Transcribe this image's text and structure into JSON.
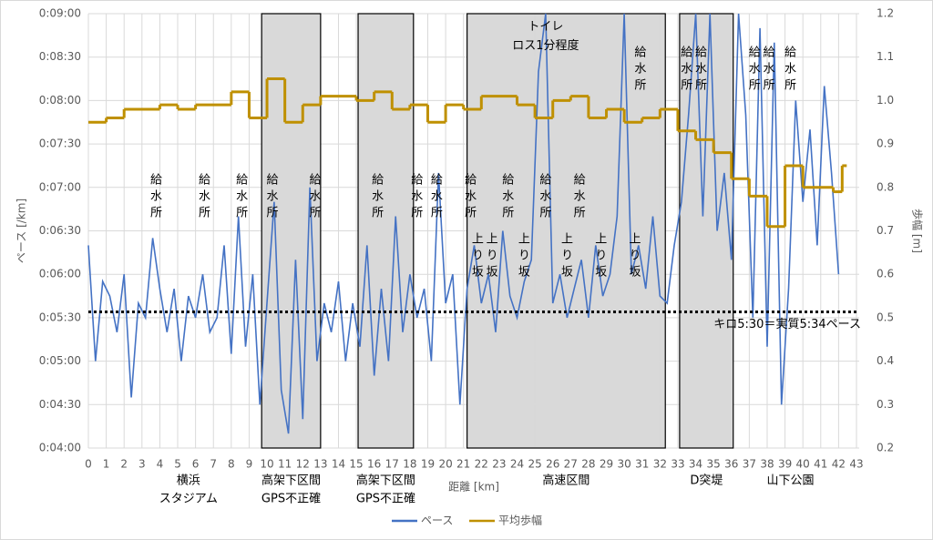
{
  "chart_data": {
    "type": "line",
    "xlabel": "距離 [km]",
    "ylabel": "ペース [/km]",
    "y2label": "歩幅 [m]",
    "xlim": [
      0,
      43
    ],
    "xticks": [
      0,
      1,
      2,
      3,
      4,
      5,
      6,
      7,
      8,
      9,
      10,
      11,
      12,
      13,
      14,
      15,
      16,
      17,
      18,
      19,
      20,
      21,
      22,
      23,
      24,
      25,
      26,
      27,
      28,
      29,
      30,
      31,
      32,
      33,
      34,
      35,
      36,
      37,
      38,
      39,
      40,
      41,
      42,
      43
    ],
    "ylim": [
      240,
      540
    ],
    "yticks": [
      {
        "value": 240,
        "label": "0:04:00"
      },
      {
        "value": 270,
        "label": "0:04:30"
      },
      {
        "value": 300,
        "label": "0:05:00"
      },
      {
        "value": 330,
        "label": "0:05:30"
      },
      {
        "value": 360,
        "label": "0:06:00"
      },
      {
        "value": 390,
        "label": "0:06:30"
      },
      {
        "value": 420,
        "label": "0:07:00"
      },
      {
        "value": 450,
        "label": "0:07:30"
      },
      {
        "value": 480,
        "label": "0:08:00"
      },
      {
        "value": 510,
        "label": "0:08:30"
      },
      {
        "value": 540,
        "label": "0:09:00"
      }
    ],
    "y2lim": [
      0.2,
      1.2
    ],
    "y2ticks": [
      0.2,
      0.3,
      0.4,
      0.5,
      0.6,
      0.7,
      0.8,
      0.9,
      {
        "value": 1,
        "label": "1.0"
      },
      1.1,
      1.2
    ],
    "grid": true,
    "legend": "bottom",
    "series": [
      {
        "name": "ペース",
        "color": "#4472c4",
        "x": [
          0,
          0.4,
          0.8,
          1.2,
          1.6,
          2,
          2.4,
          2.8,
          3.2,
          3.6,
          4,
          4.4,
          4.8,
          5.2,
          5.6,
          6,
          6.4,
          6.8,
          7.2,
          7.6,
          8,
          8.4,
          8.8,
          9.2,
          9.6,
          10,
          10.4,
          10.8,
          11.2,
          11.6,
          12,
          12.4,
          12.8,
          13.2,
          13.6,
          14,
          14.4,
          14.8,
          15.2,
          15.6,
          16,
          16.4,
          16.8,
          17.2,
          17.6,
          18,
          18.4,
          18.8,
          19.2,
          19.6,
          20,
          20.4,
          20.8,
          21.2,
          21.6,
          22,
          22.4,
          22.8,
          23.2,
          23.6,
          24,
          24.4,
          24.8,
          25.2,
          25.6,
          26,
          26.4,
          26.8,
          27.2,
          27.6,
          28,
          28.4,
          28.8,
          29.2,
          29.6,
          30,
          30.4,
          30.8,
          31.2,
          31.6,
          32,
          32.4,
          32.8,
          33.2,
          33.6,
          34,
          34.4,
          34.8,
          35.2,
          35.6,
          36,
          36.4,
          36.8,
          37.2,
          37.6,
          38,
          38.4,
          38.8,
          39.2,
          39.6,
          40,
          40.4,
          40.8,
          41.2,
          41.6,
          42
        ],
        "values": [
          380,
          300,
          355,
          345,
          320,
          360,
          275,
          340,
          330,
          385,
          350,
          320,
          350,
          300,
          345,
          330,
          360,
          320,
          330,
          380,
          305,
          400,
          310,
          360,
          270,
          340,
          410,
          280,
          250,
          370,
          260,
          420,
          300,
          340,
          320,
          355,
          300,
          340,
          310,
          380,
          290,
          350,
          300,
          400,
          320,
          360,
          330,
          350,
          300,
          430,
          340,
          360,
          270,
          350,
          380,
          340,
          360,
          320,
          390,
          345,
          330,
          355,
          370,
          500,
          540,
          340,
          360,
          330,
          350,
          370,
          330,
          380,
          345,
          360,
          400,
          540,
          360,
          380,
          350,
          400,
          345,
          340,
          380,
          410,
          470,
          540,
          400,
          540,
          390,
          430,
          370,
          540,
          470,
          330,
          530,
          310,
          520,
          270,
          350,
          480,
          410,
          460,
          380,
          490,
          430,
          360
        ]
      },
      {
        "name": "平均歩幅",
        "color": "#bf9000",
        "axis": "y2",
        "step": true,
        "x": [
          0,
          1,
          2,
          4,
          5,
          6,
          8,
          9,
          10,
          11,
          12,
          13,
          15,
          16,
          17,
          18,
          19,
          20,
          21,
          22,
          24,
          25,
          26,
          27,
          28,
          29,
          30,
          31,
          32,
          33,
          34,
          35,
          36,
          37,
          38,
          39,
          40,
          41.7,
          42.2
        ],
        "values": [
          0.95,
          0.96,
          0.98,
          0.99,
          0.98,
          0.99,
          1.02,
          0.96,
          1.05,
          0.95,
          0.99,
          1.01,
          1.0,
          1.02,
          0.98,
          0.99,
          0.95,
          0.99,
          0.98,
          1.01,
          0.99,
          0.96,
          1.0,
          1.01,
          0.96,
          0.98,
          0.95,
          0.96,
          0.98,
          0.93,
          0.91,
          0.88,
          0.82,
          0.78,
          0.71,
          0.85,
          0.8,
          0.79,
          0.85
        ]
      }
    ],
    "reference_line": {
      "value": 334,
      "label": "キロ5:30＝実質5:34ペース"
    },
    "regions": [
      {
        "start": 9.7,
        "end": 13,
        "labels": [
          "高架下区間",
          "GPS不正確"
        ]
      },
      {
        "start": 15.1,
        "end": 18.2,
        "labels": [
          "高架下区間",
          "GPS不正確"
        ]
      },
      {
        "start": 21.2,
        "end": 32.3,
        "labels": [
          "高速区間"
        ]
      },
      {
        "start": 33.1,
        "end": 36.1,
        "labels": [
          "D突堤"
        ]
      }
    ],
    "bottom_labels": [
      {
        "x": 5.6,
        "lines": [
          "横浜",
          "スタジアム"
        ]
      },
      {
        "x": 39.3,
        "lines": [
          "山下公園"
        ]
      }
    ],
    "annotations": [
      {
        "x": 3.7,
        "y": 430,
        "text": "給水所"
      },
      {
        "x": 6.4,
        "y": 430,
        "text": "給水所"
      },
      {
        "x": 8.5,
        "y": 430,
        "text": "給水所"
      },
      {
        "x": 10.2,
        "y": 430,
        "text": "給水所"
      },
      {
        "x": 12.6,
        "y": 430,
        "text": "給水所"
      },
      {
        "x": 16.1,
        "y": 430,
        "text": "給水所"
      },
      {
        "x": 18.3,
        "y": 430,
        "text": "給水所"
      },
      {
        "x": 19.4,
        "y": 430,
        "text": "給水所"
      },
      {
        "x": 21.3,
        "y": 430,
        "text": "給水所"
      },
      {
        "x": 23.4,
        "y": 430,
        "text": "給水所"
      },
      {
        "x": 25.5,
        "y": 430,
        "text": "給水所"
      },
      {
        "x": 27.4,
        "y": 430,
        "text": "給水所"
      },
      {
        "x": 30.8,
        "y": 518,
        "text": "給水所"
      },
      {
        "x": 33.4,
        "y": 518,
        "text": "給水所"
      },
      {
        "x": 34.2,
        "y": 518,
        "text": "給水所"
      },
      {
        "x": 37.2,
        "y": 518,
        "text": "給水所"
      },
      {
        "x": 38.0,
        "y": 518,
        "text": "給水所"
      },
      {
        "x": 39.2,
        "y": 518,
        "text": "給水所"
      },
      {
        "x": 21.7,
        "y": 389,
        "text": "上り坂"
      },
      {
        "x": 22.5,
        "y": 389,
        "text": "上り坂"
      },
      {
        "x": 24.3,
        "y": 389,
        "text": "上り坂"
      },
      {
        "x": 26.7,
        "y": 389,
        "text": "上り坂"
      },
      {
        "x": 28.6,
        "y": 389,
        "text": "上り坂"
      },
      {
        "x": 30.5,
        "y": 389,
        "text": "上り坂"
      }
    ],
    "notes": [
      {
        "x": 25.6,
        "y": 531,
        "lines": [
          "トイレ",
          "ロス1分程度"
        ]
      }
    ]
  }
}
